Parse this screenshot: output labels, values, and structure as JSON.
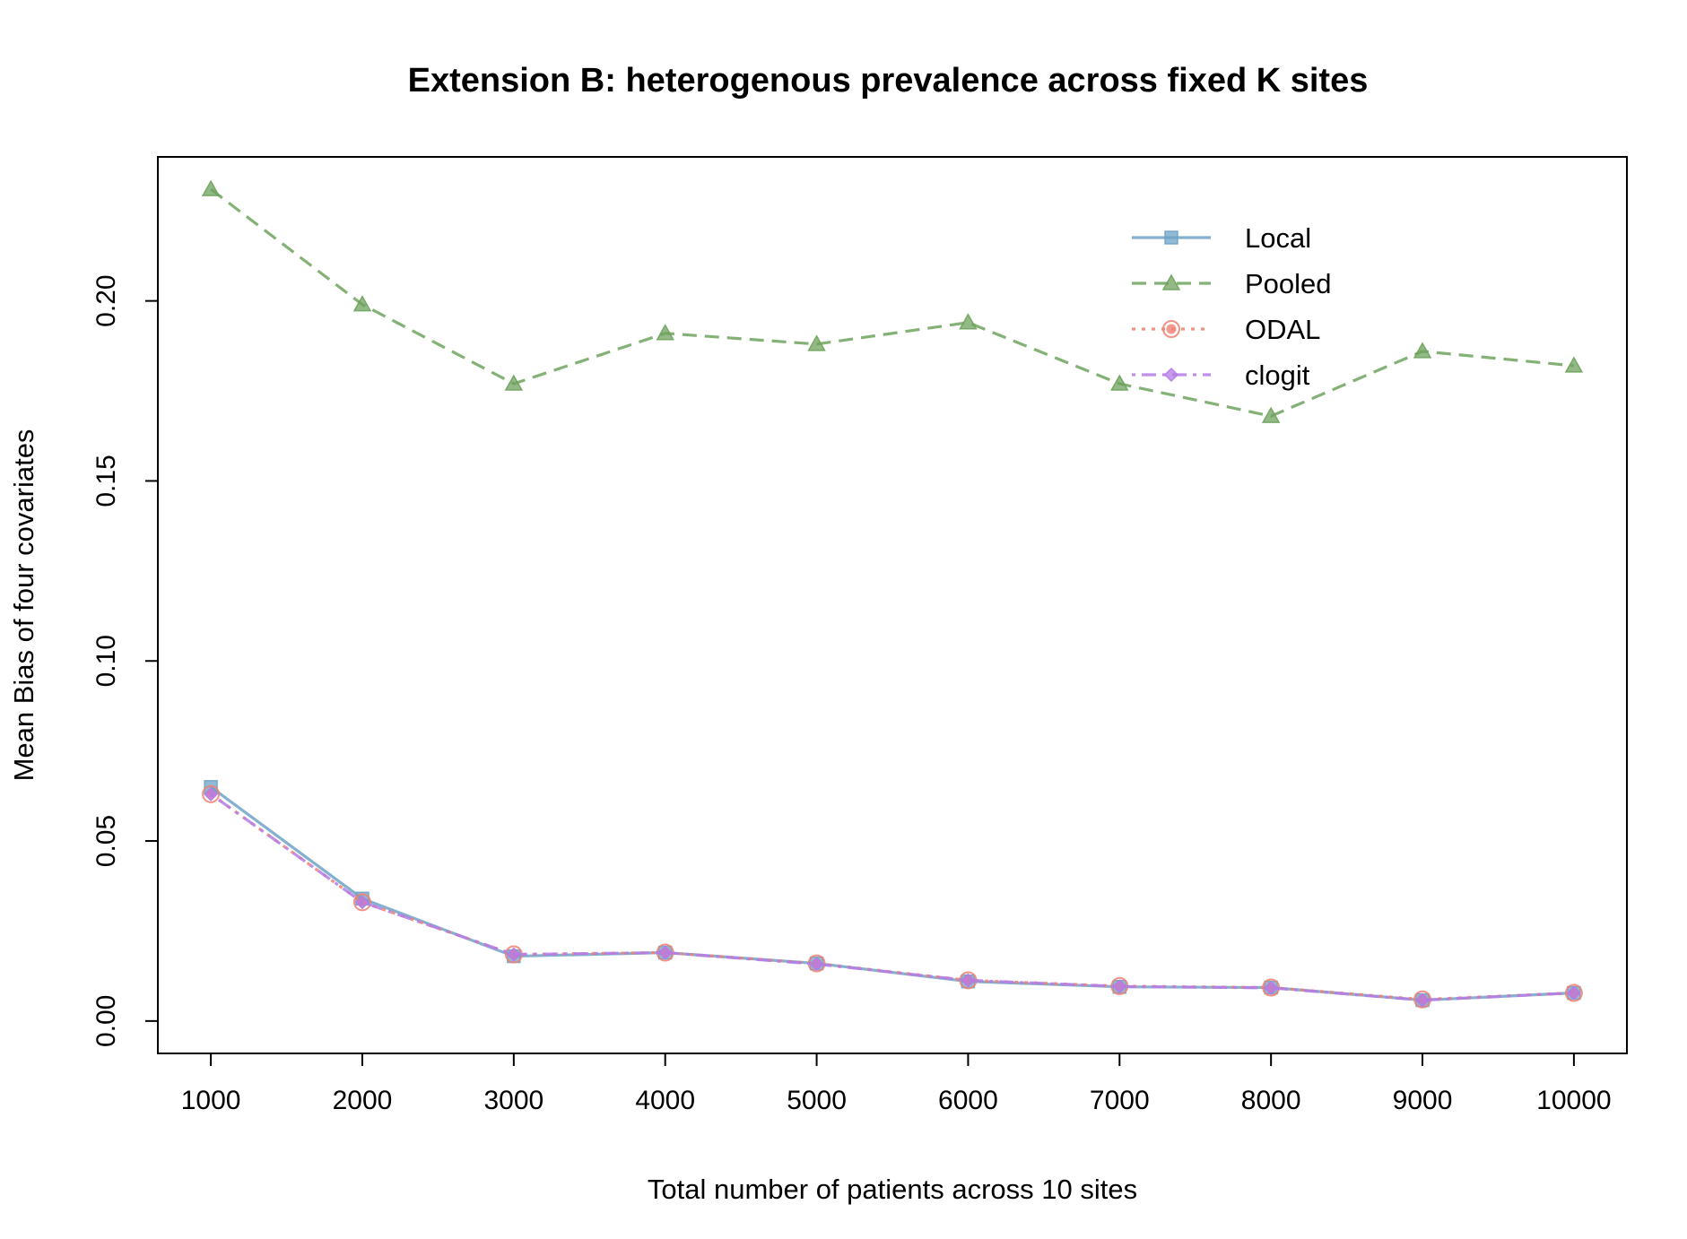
{
  "chart_data": {
    "type": "line",
    "title": "Extension B: heterogenous prevalence across fixed K sites",
    "xlabel": "Total number of patients across 10 sites",
    "ylabel": "Mean Bias of four covariates",
    "x": [
      1000,
      2000,
      3000,
      4000,
      5000,
      6000,
      7000,
      8000,
      9000,
      10000
    ],
    "xticks": [
      "1000",
      "2000",
      "3000",
      "4000",
      "5000",
      "6000",
      "7000",
      "8000",
      "9000",
      "10000"
    ],
    "yticks": [
      0.0,
      0.05,
      0.1,
      0.15,
      0.2
    ],
    "ytick_labels": [
      "0.00",
      "0.05",
      "0.10",
      "0.15",
      "0.20"
    ],
    "ylim": [
      -0.009,
      0.24
    ],
    "xlim": [
      650,
      10350
    ],
    "grid": false,
    "legend_position": "top-right",
    "series": [
      {
        "name": "Local",
        "color": "#6fa3c7",
        "dash": "solid",
        "marker": "square",
        "values": [
          0.065,
          0.034,
          0.018,
          0.019,
          0.016,
          0.011,
          0.0095,
          0.0093,
          0.0058,
          0.0078
        ]
      },
      {
        "name": "Pooled",
        "color": "#6fa35d",
        "dash": "dashed",
        "marker": "triangle",
        "values": [
          0.231,
          0.199,
          0.177,
          0.191,
          0.188,
          0.194,
          0.177,
          0.168,
          0.186,
          0.182
        ]
      },
      {
        "name": "ODAL",
        "color": "#f08070",
        "dash": "dotted",
        "marker": "circle",
        "values": [
          0.063,
          0.033,
          0.0185,
          0.019,
          0.016,
          0.0113,
          0.0097,
          0.0093,
          0.006,
          0.0078
        ]
      },
      {
        "name": "clogit",
        "color": "#b57be6",
        "dash": "dashdot",
        "marker": "diamond",
        "values": [
          0.063,
          0.033,
          0.0185,
          0.019,
          0.0158,
          0.0113,
          0.0096,
          0.0092,
          0.0058,
          0.0078
        ]
      }
    ]
  }
}
